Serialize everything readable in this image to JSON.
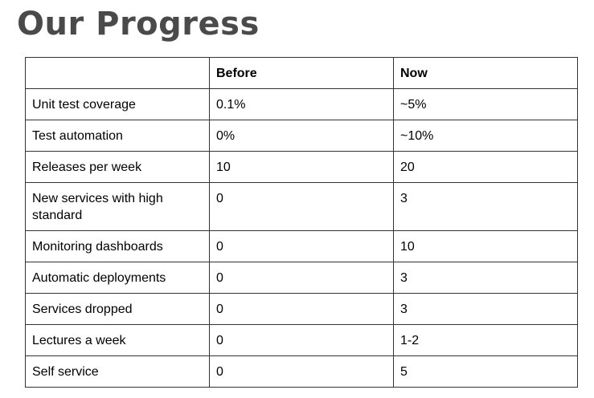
{
  "title": "Our Progress",
  "table": {
    "headers": [
      "",
      "Before",
      "Now"
    ],
    "rows": [
      [
        "Unit test coverage",
        "0.1%",
        "~5%"
      ],
      [
        "Test automation",
        "0%",
        "~10%"
      ],
      [
        "Releases per week",
        "10",
        "20"
      ],
      [
        "New services with high standard",
        "0",
        "3"
      ],
      [
        "Monitoring dashboards",
        "0",
        "10"
      ],
      [
        "Automatic deployments",
        "0",
        "3"
      ],
      [
        "Services dropped",
        "0",
        "3"
      ],
      [
        "Lectures a week",
        "0",
        "1-2"
      ],
      [
        "Self service",
        "0",
        "5"
      ]
    ]
  }
}
